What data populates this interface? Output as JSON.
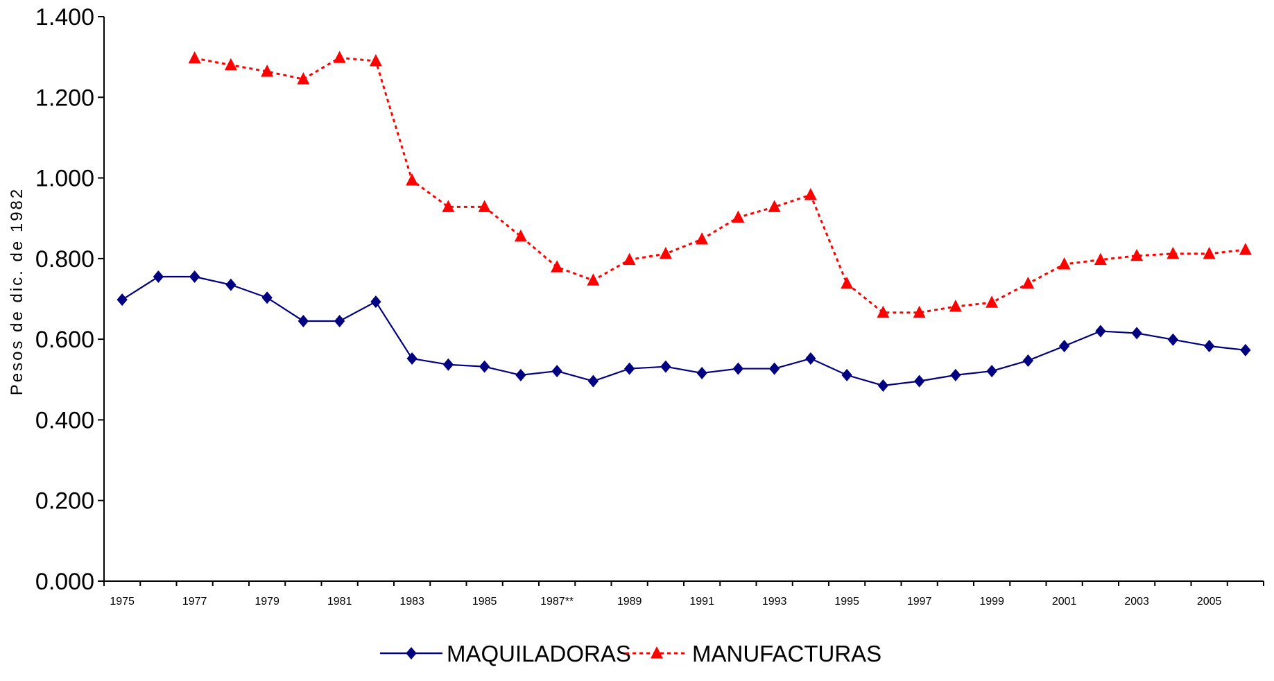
{
  "chart_data": {
    "type": "line",
    "title": "",
    "xlabel": "",
    "ylabel": "Pesos de dic. de 1982",
    "ylim": [
      0,
      1.4
    ],
    "yticks": [
      "0.000",
      "0.200",
      "0.400",
      "0.600",
      "0.800",
      "1.000",
      "1.200",
      "1.400"
    ],
    "categories": [
      "1975",
      "1976",
      "1977",
      "1978",
      "1979",
      "1980",
      "1981",
      "1982",
      "1983",
      "1984",
      "1985",
      "1986",
      "1987**",
      "1988",
      "1989",
      "1990",
      "1991",
      "1992",
      "1993",
      "1994",
      "1995",
      "1996",
      "1997",
      "1998",
      "1999",
      "2000",
      "2001",
      "2002",
      "2003",
      "2004",
      "2005",
      "2006"
    ],
    "xtick_labels": [
      "1975",
      "",
      "1977",
      "",
      "1979",
      "",
      "1981",
      "",
      "1983",
      "",
      "1985",
      "",
      "1987**",
      "",
      "1989",
      "",
      "1991",
      "",
      "1993",
      "",
      "1995",
      "",
      "1997",
      "",
      "1999",
      "",
      "2001",
      "",
      "2003",
      "",
      "2005",
      ""
    ],
    "grid": false,
    "legend_position": "bottom",
    "series": [
      {
        "name": "MAQUILADORAS",
        "color": "#000080",
        "line_style": "solid",
        "marker": "diamond",
        "values": [
          0.698,
          0.755,
          0.755,
          0.735,
          0.703,
          0.645,
          0.645,
          0.693,
          0.552,
          0.537,
          0.532,
          0.511,
          0.521,
          0.496,
          0.527,
          0.532,
          0.516,
          0.527,
          0.527,
          0.552,
          0.511,
          0.485,
          0.496,
          0.511,
          0.521,
          0.547,
          0.583,
          0.62,
          0.615,
          0.599,
          0.583,
          0.573
        ]
      },
      {
        "name": "MANUFACTURAS",
        "color": "#ff0000",
        "line_style": "dotted",
        "marker": "triangle",
        "values": [
          null,
          null,
          1.297,
          1.28,
          1.264,
          1.245,
          1.298,
          1.29,
          0.994,
          0.928,
          0.928,
          0.855,
          0.779,
          0.746,
          0.797,
          0.812,
          0.848,
          0.902,
          0.928,
          0.958,
          0.738,
          0.666,
          0.666,
          0.681,
          0.691,
          0.738,
          0.786,
          0.797,
          0.807,
          0.812,
          0.812,
          0.822
        ]
      }
    ]
  }
}
